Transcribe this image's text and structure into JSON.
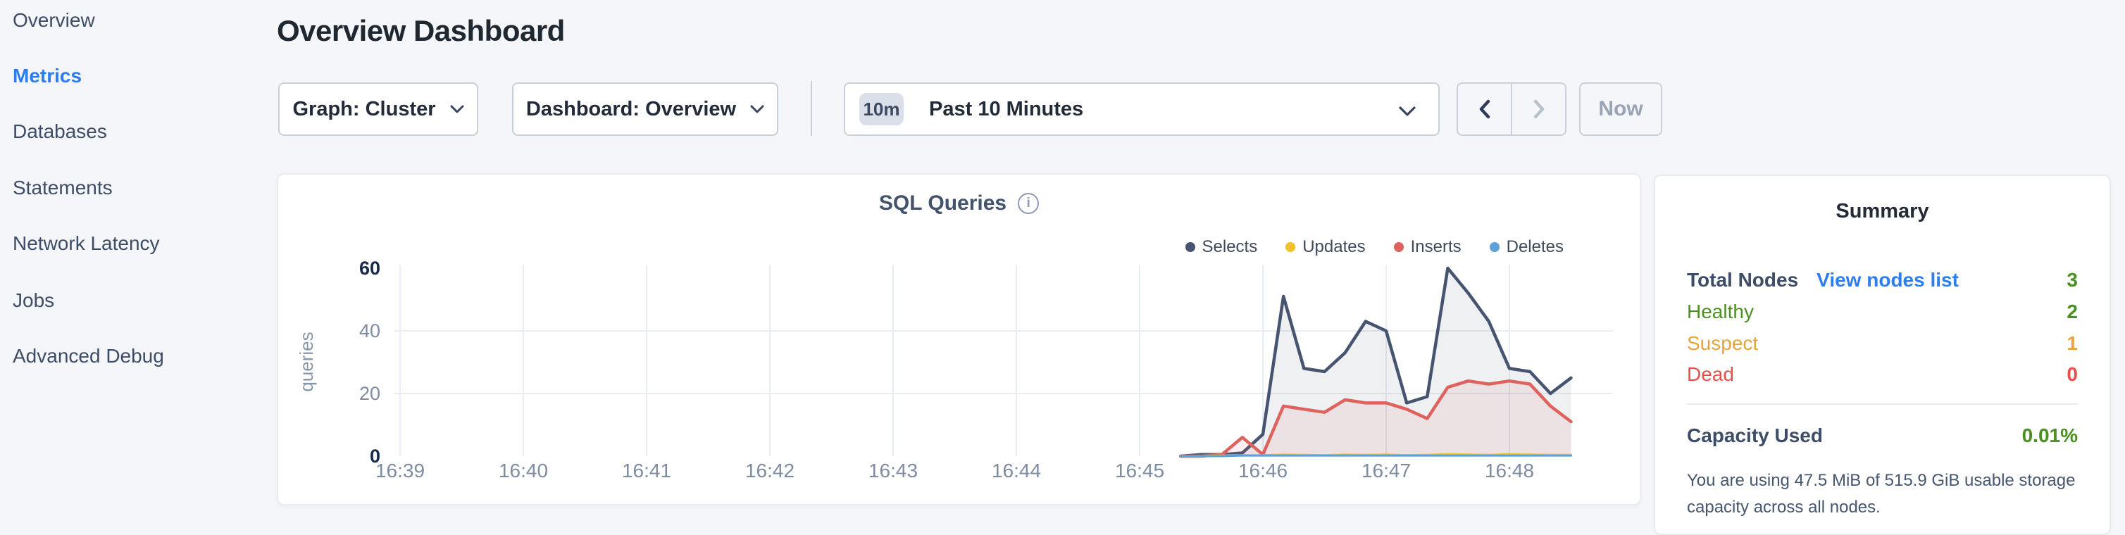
{
  "sidebar": {
    "items": [
      {
        "label": "Overview",
        "active": false
      },
      {
        "label": "Metrics",
        "active": true
      },
      {
        "label": "Databases",
        "active": false
      },
      {
        "label": "Statements",
        "active": false
      },
      {
        "label": "Network Latency",
        "active": false
      },
      {
        "label": "Jobs",
        "active": false
      },
      {
        "label": "Advanced Debug",
        "active": false
      }
    ],
    "active_color": "#2b7cf0"
  },
  "header": {
    "title": "Overview Dashboard"
  },
  "toolbar": {
    "graph_dropdown": {
      "label": "Graph: Cluster"
    },
    "dashboard_dropdown": {
      "label": "Dashboard: Overview"
    },
    "time_selector": {
      "badge": "10m",
      "label": "Past 10 Minutes"
    },
    "now_button": {
      "label": "Now"
    }
  },
  "chart_data": {
    "type": "area",
    "title": "SQL Queries",
    "ylabel": "queries",
    "ylim": [
      0,
      60
    ],
    "y_ticks": [
      0,
      20,
      40,
      60
    ],
    "x_tick_labels": [
      "16:39",
      "16:40",
      "16:41",
      "16:42",
      "16:43",
      "16:44",
      "16:45",
      "16:46",
      "16:47",
      "16:48"
    ],
    "x_seconds_after_16_39": [
      380,
      390,
      400,
      410,
      420,
      430,
      440,
      450,
      460,
      470,
      480,
      490,
      500,
      510,
      520,
      530,
      540,
      550,
      560,
      570
    ],
    "series": [
      {
        "name": "Selects",
        "color": "#46546f",
        "values": [
          0,
          0.5,
          0.5,
          1,
          7,
          51,
          28,
          27,
          33,
          43,
          40,
          17,
          19,
          60,
          52,
          43,
          28,
          27,
          20,
          25
        ]
      },
      {
        "name": "Updates",
        "color": "#f1c02c",
        "values": [
          0,
          0,
          0.2,
          0.3,
          0.3,
          0.5,
          0.4,
          0.3,
          0.5,
          0.4,
          0.5,
          0.3,
          0.4,
          0.6,
          0.5,
          0.4,
          0.6,
          0.5,
          0.4,
          0.4
        ]
      },
      {
        "name": "Inserts",
        "color": "#de625e",
        "values": [
          0,
          0,
          0.5,
          6,
          0.5,
          16,
          15,
          14,
          18,
          17,
          17,
          15,
          12,
          22,
          24,
          23,
          24,
          23,
          16,
          11
        ]
      },
      {
        "name": "Deletes",
        "color": "#5aa2d8",
        "values": [
          0,
          0,
          0,
          0.2,
          0.2,
          0.2,
          0.2,
          0.2,
          0.2,
          0.2,
          0.2,
          0.2,
          0.2,
          0.2,
          0.2,
          0.2,
          0.2,
          0.2,
          0.2,
          0.2
        ]
      }
    ],
    "legend_position": "top-right",
    "grid": "horizontal gridlines at 20 and 40; vertical gridline per minute"
  },
  "summary": {
    "title": "Summary",
    "link_color": "#2d7ef0",
    "rows": [
      {
        "label": "Total Nodes",
        "link": "View nodes list",
        "value": "3",
        "label_color": "#3d4d68",
        "value_color": "#4b9022"
      },
      {
        "label": "Healthy",
        "value": "2",
        "label_color": "#4b9022",
        "value_color": "#4b9022"
      },
      {
        "label": "Suspect",
        "value": "1",
        "label_color": "#e9a43b",
        "value_color": "#e9a43b"
      },
      {
        "label": "Dead",
        "value": "0",
        "label_color": "#e4514b",
        "value_color": "#e4514b"
      }
    ],
    "capacity": {
      "label": "Capacity Used",
      "value": "0.01%",
      "value_color": "#4b9022",
      "description": "You are using 47.5 MiB of 515.9 GiB usable storage capacity across all nodes."
    }
  }
}
